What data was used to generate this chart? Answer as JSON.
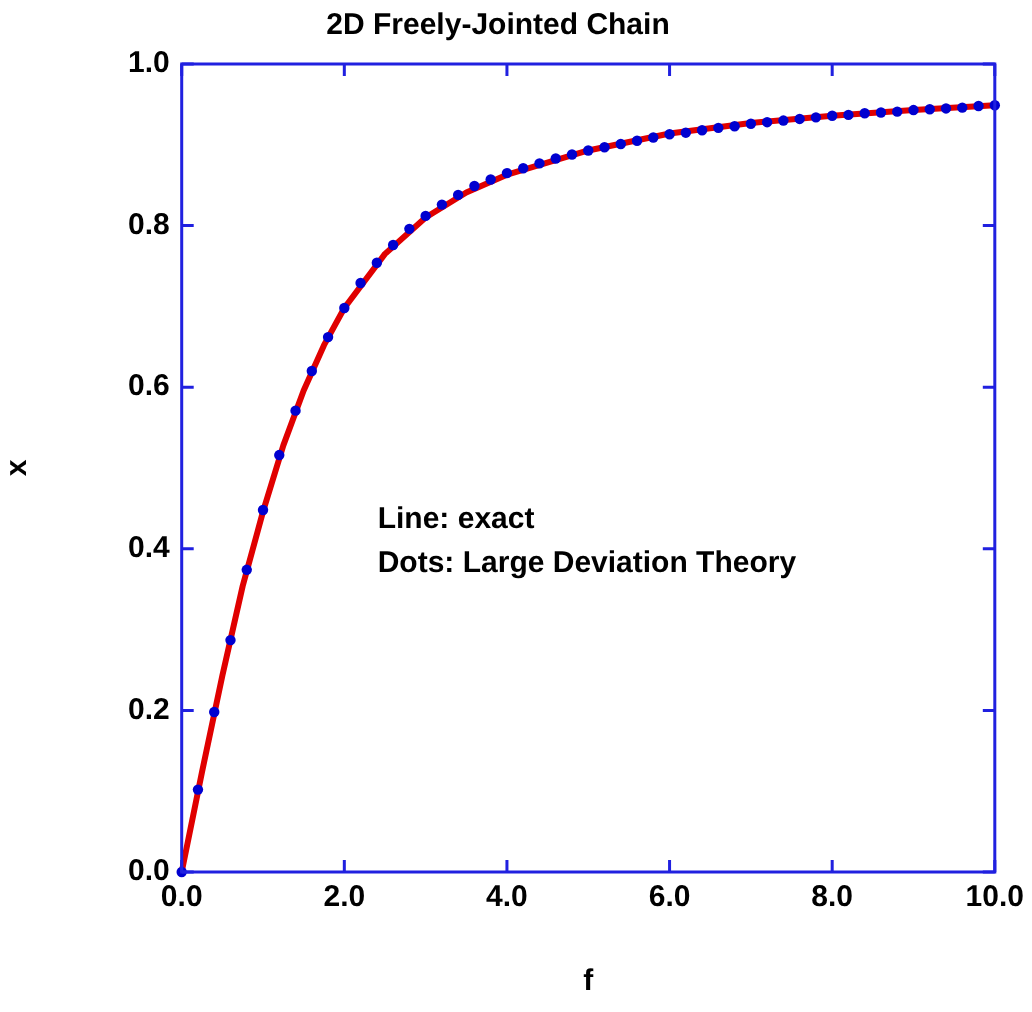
{
  "chart_data": {
    "type": "line",
    "title": "2D Freely-Jointed Chain",
    "xlabel": "f",
    "ylabel": "x",
    "annotations": [
      "Line: exact",
      "Dots: Large Deviation Theory"
    ],
    "xlim": [
      0,
      10
    ],
    "xticks": [
      {
        "value": 0,
        "label": "0.0"
      },
      {
        "value": 2,
        "label": "2.0"
      },
      {
        "value": 4,
        "label": "4.0"
      },
      {
        "value": 6,
        "label": "6.0"
      },
      {
        "value": 8,
        "label": "8.0"
      },
      {
        "value": 10,
        "label": "10.0"
      }
    ],
    "ylim": [
      0,
      1
    ],
    "yticks": [
      {
        "value": 0,
        "label": "0.0"
      },
      {
        "value": 0.2,
        "label": "0.2"
      },
      {
        "value": 0.4,
        "label": "0.4"
      },
      {
        "value": 0.6,
        "label": "0.6"
      },
      {
        "value": 0.8,
        "label": "0.8"
      },
      {
        "value": 1,
        "label": "1.0"
      }
    ],
    "grid": false,
    "legend": false,
    "series": [
      {
        "color": "#e00000",
        "marker": "none",
        "line_style": "solid",
        "x": [
          0,
          0.25,
          0.5,
          0.75,
          1,
          1.25,
          1.5,
          1.75,
          2,
          2.5,
          3,
          3.5,
          4,
          5,
          6,
          7,
          8,
          9,
          10
        ],
        "values": [
          0,
          0.124,
          0.243,
          0.354,
          0.446,
          0.528,
          0.596,
          0.652,
          0.698,
          0.765,
          0.81,
          0.841,
          0.863,
          0.893,
          0.914,
          0.927,
          0.936,
          0.943,
          0.949
        ]
      },
      {
        "type": "scatter",
        "color": "#0000d0",
        "marker": "circle",
        "x": [
          0,
          0.2,
          0.4,
          0.6,
          0.8,
          1,
          1.2,
          1.4,
          1.6,
          1.8,
          2,
          2.2,
          2.4,
          2.6,
          2.8,
          3,
          3.2,
          3.4,
          3.6,
          3.8,
          4,
          4.2,
          4.4,
          4.6,
          4.8,
          5,
          5.2,
          5.4,
          5.6,
          5.8,
          6,
          6.2,
          6.4,
          6.6,
          6.8,
          7,
          7.2,
          7.4,
          7.6,
          7.8,
          8,
          8.2,
          8.4,
          8.6,
          8.8,
          9,
          9.2,
          9.4,
          9.6,
          9.8,
          10
        ],
        "values": [
          0,
          0.102,
          0.198,
          0.287,
          0.374,
          0.448,
          0.516,
          0.571,
          0.62,
          0.662,
          0.698,
          0.729,
          0.754,
          0.776,
          0.796,
          0.812,
          0.826,
          0.838,
          0.849,
          0.857,
          0.865,
          0.871,
          0.877,
          0.883,
          0.888,
          0.893,
          0.897,
          0.901,
          0.905,
          0.909,
          0.913,
          0.915,
          0.918,
          0.921,
          0.923,
          0.926,
          0.928,
          0.93,
          0.932,
          0.934,
          0.936,
          0.937,
          0.939,
          0.94,
          0.941,
          0.943,
          0.944,
          0.945,
          0.946,
          0.948,
          0.949
        ]
      }
    ]
  }
}
